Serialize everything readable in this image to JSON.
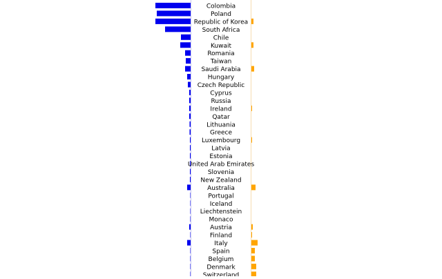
{
  "chart_data": {
    "type": "bar",
    "orientation": "horizontal",
    "layout": "butterfly",
    "categories": [
      "Colombia",
      "Poland",
      "Republic of Korea",
      "South Africa",
      "Chile",
      "Kuwait",
      "Romania",
      "Taiwan",
      "Saudi Arabia",
      "Hungary",
      "Czech Republic",
      "Cyprus",
      "Russia",
      "Ireland",
      "Qatar",
      "Lithuania",
      "Greece",
      "Luxembourg",
      "Latvia",
      "Estonia",
      "United Arab Emirates",
      "Slovenia",
      "New Zealand",
      "Australia",
      "Portugal",
      "Iceland",
      "Liechtenstein",
      "Monaco",
      "Austria",
      "Finland",
      "Italy",
      "Spain",
      "Belgium",
      "Denmark",
      "Switzerland"
    ],
    "series": [
      {
        "side": "left",
        "color": "#0000ee",
        "values": [
          51,
          49,
          51,
          37,
          14,
          15,
          8,
          7,
          8,
          5,
          4,
          2,
          2,
          2,
          2,
          1.5,
          1.5,
          1,
          1,
          1,
          1,
          1,
          1,
          5,
          0.5,
          0.5,
          0.5,
          0.5,
          2,
          0.5,
          5,
          0.5,
          0.5,
          0.5,
          0.5
        ]
      },
      {
        "side": "right",
        "color": "#ffa500",
        "values": [
          0,
          0,
          3,
          0,
          0,
          3,
          0,
          0,
          4,
          0,
          0,
          0,
          0,
          1,
          0,
          0,
          0,
          1,
          0,
          0,
          0,
          0,
          0,
          6,
          0,
          0,
          0,
          0,
          2,
          1,
          9,
          5,
          5,
          7,
          7
        ]
      }
    ],
    "grid": false,
    "legend": "none"
  }
}
